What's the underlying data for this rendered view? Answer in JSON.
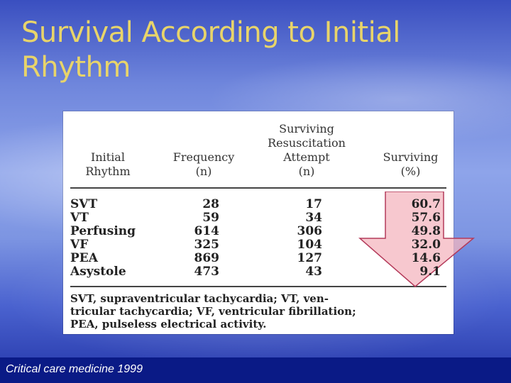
{
  "slide": {
    "title_line1": "Survival According to Initial",
    "title_line2": "Rhythm"
  },
  "table": {
    "headers": {
      "rhythm": [
        "Initial",
        "Rhythm"
      ],
      "frequency": [
        "Frequency",
        "(n)"
      ],
      "surviving_attempt": [
        "Surviving",
        "Resuscitation",
        "Attempt",
        "(n)"
      ],
      "surviving_pct": [
        "Surviving",
        "(%)"
      ]
    },
    "rows": [
      {
        "rhythm": "SVT",
        "frequency": "28",
        "surviving_attempt": "17",
        "surviving_pct": "60.7"
      },
      {
        "rhythm": "VT",
        "frequency": "59",
        "surviving_attempt": "34",
        "surviving_pct": "57.6"
      },
      {
        "rhythm": "Perfusing",
        "frequency": "614",
        "surviving_attempt": "306",
        "surviving_pct": "49.8"
      },
      {
        "rhythm": "VF",
        "frequency": "325",
        "surviving_attempt": "104",
        "surviving_pct": "32.0"
      },
      {
        "rhythm": "PEA",
        "frequency": "869",
        "surviving_attempt": "127",
        "surviving_pct": "14.6"
      },
      {
        "rhythm": "Asystole",
        "frequency": "473",
        "surviving_attempt": "43",
        "surviving_pct": "9.1"
      }
    ],
    "footnote_lines": [
      "SVT, supraventricular tachycardia; VT, ven-",
      "tricular tachycardia; VF, ventricular fibrillation;",
      "PEA, pulseless electrical activity."
    ]
  },
  "citation": "Critical care medicine 1999",
  "colors": {
    "title": "#e8d46a",
    "arrow_fill": "#f4b6bf",
    "arrow_stroke": "#b43a5a",
    "footer_bar": "#0a1a86"
  }
}
